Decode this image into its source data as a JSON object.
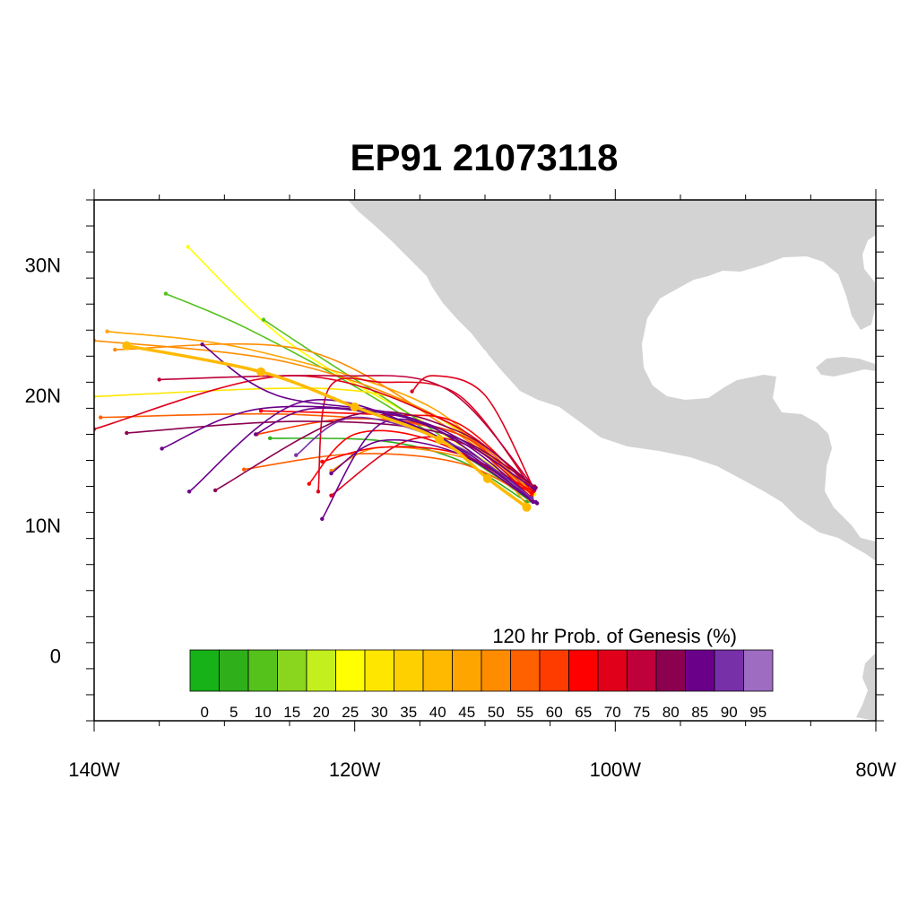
{
  "title": "EP91 21073118",
  "map": {
    "lon_range": [
      -140,
      -80
    ],
    "lat_range": [
      -5,
      35
    ],
    "land_color": "#d3d3d3",
    "x_ticks": [
      {
        "lon": -140,
        "label": "140W"
      },
      {
        "lon": -120,
        "label": "120W"
      },
      {
        "lon": -100,
        "label": "100W"
      },
      {
        "lon": -80,
        "label": "80W"
      }
    ],
    "y_ticks": [
      {
        "lat": 0,
        "label": "0"
      },
      {
        "lat": 10,
        "label": "10N"
      },
      {
        "lat": 20,
        "label": "20N"
      },
      {
        "lat": 30,
        "label": "30N"
      }
    ]
  },
  "colorbar": {
    "title": "120 hr Prob. of Genesis (%)",
    "labels": [
      "0",
      "5",
      "10",
      "15",
      "20",
      "25",
      "30",
      "35",
      "40",
      "45",
      "50",
      "55",
      "60",
      "65",
      "70",
      "75",
      "80",
      "85",
      "90",
      "95"
    ],
    "colors": [
      "#17b217",
      "#2fb01a",
      "#55c21b",
      "#8ad61e",
      "#c3ef1f",
      "#ffff00",
      "#ffe600",
      "#ffd000",
      "#ffba00",
      "#ffa500",
      "#ff8c00",
      "#ff6000",
      "#ff3c00",
      "#ff0000",
      "#e0001a",
      "#c0003a",
      "#8c0050",
      "#6a008a",
      "#7830a8",
      "#9e6cc0"
    ]
  },
  "chart_data": {
    "type": "track-map",
    "mean_track": [
      [
        -106.8,
        11.4
      ],
      [
        -109.8,
        13.6
      ],
      [
        -113.5,
        16.6
      ],
      [
        -120,
        19.1
      ],
      [
        -127.2,
        21.8
      ],
      [
        -137.5,
        23.8
      ]
    ],
    "tracks": [
      {
        "c": 5,
        "pts": [
          [
            -106.2,
            12.4
          ],
          [
            -114,
            17.5
          ],
          [
            -125,
            24
          ],
          [
            -132.8,
            31.4
          ]
        ]
      },
      {
        "c": 2,
        "pts": [
          [
            -106.5,
            12.0
          ],
          [
            -118,
            19.5
          ],
          [
            -128,
            25
          ],
          [
            -134.5,
            27.8
          ]
        ]
      },
      {
        "c": 2,
        "pts": [
          [
            -106.6,
            11.9
          ],
          [
            -115,
            18
          ],
          [
            -122,
            22.5
          ],
          [
            -127,
            25.8
          ]
        ]
      },
      {
        "c": 1,
        "pts": [
          [
            -106.8,
            11.8
          ],
          [
            -112,
            15
          ],
          [
            -118,
            16.5
          ],
          [
            -126.5,
            16.7
          ]
        ]
      },
      {
        "c": 6,
        "pts": [
          [
            -106.4,
            12.5
          ],
          [
            -114,
            18.5
          ],
          [
            -122,
            20.5
          ],
          [
            -140,
            19.9
          ]
        ]
      },
      {
        "c": 9,
        "pts": [
          [
            -106.7,
            11.5
          ],
          [
            -114,
            19
          ],
          [
            -128,
            23.5
          ],
          [
            -139,
            24.9
          ]
        ]
      },
      {
        "c": 10,
        "pts": [
          [
            -106.5,
            12.2
          ],
          [
            -113,
            18
          ],
          [
            -125,
            22.5
          ],
          [
            -140,
            24.2
          ]
        ]
      },
      {
        "c": 10,
        "pts": [
          [
            -106.3,
            12.6
          ],
          [
            -113,
            17.6
          ],
          [
            -124,
            23.5
          ],
          [
            -138.4,
            23.5
          ]
        ]
      },
      {
        "c": 11,
        "pts": [
          [
            -106.4,
            12.3
          ],
          [
            -112,
            17
          ],
          [
            -124,
            18.5
          ],
          [
            -139.5,
            18.3
          ]
        ]
      },
      {
        "c": 10,
        "pts": [
          [
            -106.6,
            12.0
          ],
          [
            -111,
            15
          ],
          [
            -118,
            16
          ],
          [
            -121.8,
            14.2
          ]
        ]
      },
      {
        "c": 11,
        "pts": [
          [
            -106.5,
            12.1
          ],
          [
            -112,
            14.8
          ],
          [
            -120,
            15.5
          ],
          [
            -128.5,
            14.3
          ]
        ]
      },
      {
        "c": 12,
        "pts": [
          [
            -106.4,
            12.4
          ],
          [
            -112,
            17
          ],
          [
            -120,
            18.2
          ],
          [
            -127.5,
            17.0
          ]
        ]
      },
      {
        "c": 13,
        "pts": [
          [
            -106.3,
            12.6
          ],
          [
            -112,
            15.5
          ],
          [
            -118,
            16
          ],
          [
            -122.5,
            14.9
          ]
        ]
      },
      {
        "c": 13,
        "pts": [
          [
            -106.4,
            12.5
          ],
          [
            -114,
            16.5
          ],
          [
            -120,
            17
          ],
          [
            -123.5,
            13.2
          ]
        ]
      },
      {
        "c": 14,
        "pts": [
          [
            -106.2,
            12.8
          ],
          [
            -113,
            18
          ],
          [
            -125,
            21.5
          ],
          [
            -140,
            17.4
          ]
        ]
      },
      {
        "c": 14,
        "pts": [
          [
            -106.3,
            12.7
          ],
          [
            -112,
            20
          ],
          [
            -118,
            21
          ],
          [
            -122,
            20.5
          ],
          [
            -122.8,
            12.6
          ]
        ]
      },
      {
        "c": 15,
        "pts": [
          [
            -106.2,
            12.9
          ],
          [
            -113,
            20.5
          ],
          [
            -122,
            21.5
          ],
          [
            -135,
            21.2
          ]
        ]
      },
      {
        "c": 14,
        "pts": [
          [
            -106.5,
            12.2
          ],
          [
            -111,
            16
          ],
          [
            -116,
            16.5
          ],
          [
            -121.8,
            12.3
          ]
        ]
      },
      {
        "c": 13,
        "pts": [
          [
            -106.3,
            12.6
          ],
          [
            -112,
            17.8
          ],
          [
            -118,
            18.5
          ],
          [
            -127.2,
            18.8
          ]
        ]
      },
      {
        "c": 14,
        "pts": [
          [
            -106.2,
            12.7
          ],
          [
            -110,
            20
          ],
          [
            -114,
            21.5
          ],
          [
            -115.6,
            20.3
          ]
        ]
      },
      {
        "c": 16,
        "pts": [
          [
            -106.1,
            12.9
          ],
          [
            -112,
            17.2
          ],
          [
            -120,
            18.5
          ],
          [
            -130.7,
            12.7
          ]
        ]
      },
      {
        "c": 16,
        "pts": [
          [
            -106.2,
            13.0
          ],
          [
            -113,
            17
          ],
          [
            -124,
            18
          ],
          [
            -137.5,
            17.1
          ]
        ]
      },
      {
        "c": 17,
        "pts": [
          [
            -106.0,
            11.7
          ],
          [
            -112,
            16.5
          ],
          [
            -118,
            17.8
          ],
          [
            -122.5,
            10.5
          ]
        ]
      },
      {
        "c": 17,
        "pts": [
          [
            -106.1,
            11.8
          ],
          [
            -114,
            17
          ],
          [
            -124,
            19.5
          ],
          [
            -132.7,
            12.6
          ]
        ]
      },
      {
        "c": 17,
        "pts": [
          [
            -106.2,
            12.8
          ],
          [
            -115,
            18
          ],
          [
            -127,
            19
          ],
          [
            -134.8,
            15.9
          ]
        ]
      },
      {
        "c": 17,
        "pts": [
          [
            -106.3,
            11.8
          ],
          [
            -112,
            15.5
          ],
          [
            -118,
            16.5
          ],
          [
            -121.8,
            14.0
          ]
        ]
      },
      {
        "c": 17,
        "pts": [
          [
            -106.4,
            11.9
          ],
          [
            -115,
            17.5
          ],
          [
            -123,
            19
          ],
          [
            -127.6,
            17.0
          ]
        ]
      },
      {
        "c": 17,
        "pts": [
          [
            -106.5,
            12.0
          ],
          [
            -115,
            18
          ],
          [
            -126,
            20
          ],
          [
            -131.7,
            23.9
          ]
        ]
      },
      {
        "c": 18,
        "pts": [
          [
            -106.4,
            12.1
          ],
          [
            -112,
            16
          ],
          [
            -120,
            18.3
          ],
          [
            -124.5,
            15.4
          ]
        ]
      }
    ]
  }
}
